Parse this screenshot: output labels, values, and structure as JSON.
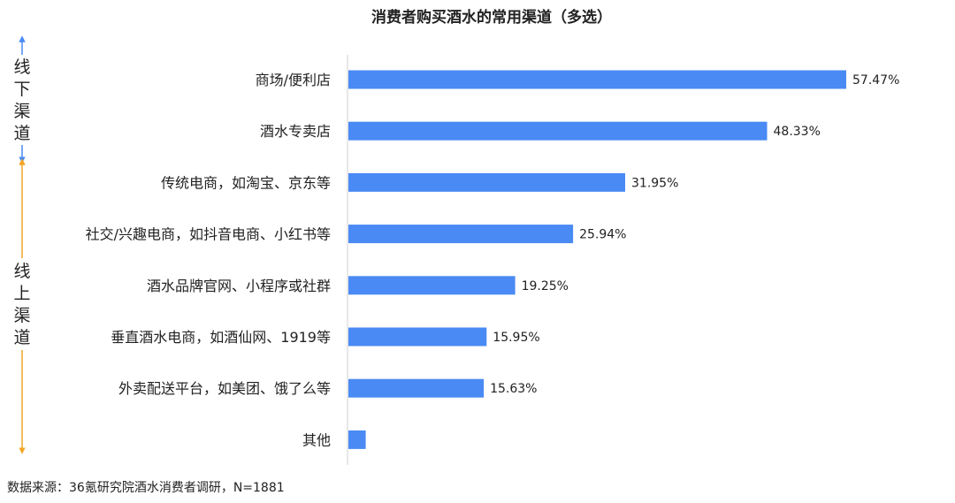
{
  "chart_data": {
    "type": "bar",
    "orientation": "horizontal",
    "title": "消费者购买酒水的常用渠道（多选）",
    "categories": [
      "商场/便利店",
      "酒水专卖店",
      "传统电商，如淘宝、京东等",
      "社交/兴趣电商，如抖音电商、小红书等",
      "酒水品牌官网、小程序或社群",
      "垂直酒水电商，如酒仙网、1919等",
      "外卖配送平台，如美团、饿了么等",
      "其他"
    ],
    "values": [
      57.47,
      48.33,
      31.95,
      25.94,
      19.25,
      15.95,
      15.63,
      2.0
    ],
    "value_labels": [
      "57.47%",
      "48.33%",
      "31.95%",
      "25.94%",
      "19.25%",
      "15.95%",
      "15.63%",
      ""
    ],
    "xlim": [
      0,
      57.47
    ],
    "grid": false,
    "legend": "none",
    "groups": [
      {
        "label": "线下渠道",
        "categories": [
          0,
          1
        ]
      },
      {
        "label": "线上渠道",
        "categories": [
          2,
          3,
          4,
          5,
          6,
          7
        ]
      }
    ],
    "source": "数据来源：36氪研究院酒水消费者调研，N=1881"
  },
  "colors": {
    "bar": "#4a8af4",
    "offline_arrow": "#4a8af4",
    "online_arrow": "#f2a527",
    "axis": "#d0d0d0"
  }
}
